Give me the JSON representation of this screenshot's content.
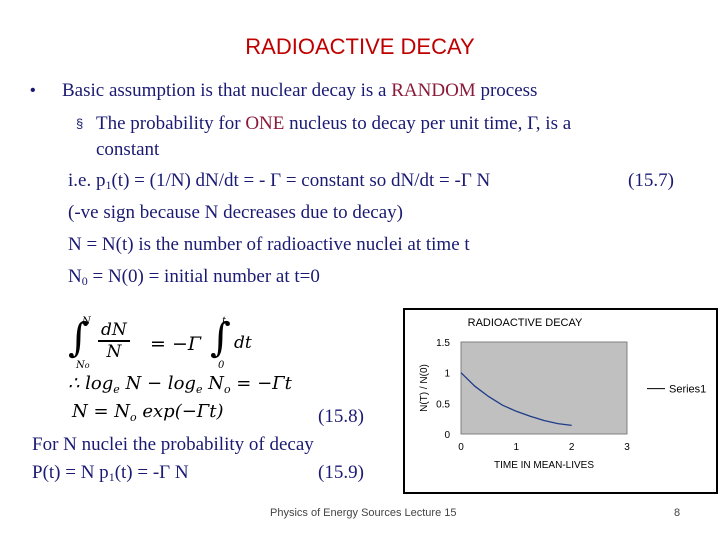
{
  "slide": {
    "title": "RADIOACTIVE DECAY",
    "bullet1": {
      "symbol": "•",
      "pre": "Basic assumption is that nuclear decay is a ",
      "highlight": "RANDOM",
      "post": " process"
    },
    "bullet2": {
      "symbol": "§",
      "pre": "The probability for ",
      "highlight": "ONE",
      "post": " nucleus to decay per unit time, Γ, is a",
      "cont": "constant"
    },
    "line_ie": {
      "a": "i.e. p",
      "sub1": "1",
      "b": "(t) = (1/N) dN/dt = - Γ = constant   so   dN/dt = -Γ N",
      "eq": "(15.7)"
    },
    "line_sign": "(-ve sign because N decreases due to decay)",
    "line_Nt": "N = N(t) is the number of radioactive nuclei at time t",
    "line_N0": {
      "a": "N",
      "sub": "0",
      "b": " = N(0) = initial number at t=0"
    },
    "eq158": "(15.8)",
    "line_for": "For N nuclei the probability of  decay",
    "line_P": {
      "a": "P(t) = N p",
      "sub": "1",
      "b": "(t) = -Γ N",
      "eq": "(15.9)"
    }
  },
  "math": {
    "int_upper": "N",
    "int_lower": "N",
    "int_lower_sub": "o",
    "frac_num": "dN",
    "frac_den": "N",
    "eq_rhs": "= −Γ",
    "int2_upper": "t",
    "int2_lower": "0",
    "dt": "dt",
    "line2": "∴ log",
    "line2_sub": "e",
    "line2_b": " N − log",
    "line2_sub2": "e",
    "line2_c": " N",
    "line2_sub3": "o",
    "line2_d": " = −Γt",
    "line3": "N = N",
    "line3_sub": "o",
    "line3_b": " exp(−Γt)"
  },
  "footer": {
    "center": "Physics of Energy Sources Lecture 15",
    "page": "8"
  },
  "chart_data": {
    "type": "line",
    "title": "RADIOACTIVE DECAY",
    "xlabel": "TIME IN MEAN-LIVES",
    "ylabel": "N(T) / N(0)",
    "x_ticks": [
      "0",
      "1",
      "2",
      "3"
    ],
    "y_ticks": [
      "0",
      "0.5",
      "1",
      "1.5"
    ],
    "xlim": [
      0,
      3
    ],
    "ylim": [
      0,
      1.5
    ],
    "grid": false,
    "legend": "right",
    "series": [
      {
        "name": "Series1",
        "color": "#1f3c88",
        "x": [
          0,
          0.25,
          0.5,
          0.75,
          1,
          1.25,
          1.5,
          1.75,
          2
        ],
        "values": [
          1.0,
          0.78,
          0.61,
          0.47,
          0.37,
          0.29,
          0.22,
          0.17,
          0.14
        ]
      }
    ]
  }
}
